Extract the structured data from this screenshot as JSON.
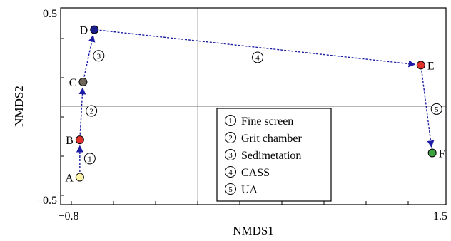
{
  "chart_data": {
    "type": "scatter",
    "title": "",
    "xlabel": "NMDS1",
    "ylabel": "NMDS2",
    "xlim": [
      -0.8,
      1.5
    ],
    "ylim": [
      -0.5,
      0.5
    ],
    "x_ticks": [
      {
        "value": -0.8,
        "label": "−0.8"
      },
      {
        "value": 1.5,
        "label": "1.5"
      }
    ],
    "y_ticks": [
      {
        "value": 0.5,
        "label": "0.5"
      },
      {
        "value": -0.5,
        "label": "−0.5"
      }
    ],
    "grid": false,
    "reference_lines": {
      "x": 0,
      "y": 0
    },
    "points": [
      {
        "label": "A",
        "x": -0.73,
        "y": -0.38,
        "color": "#fbf3a8"
      },
      {
        "label": "B",
        "x": -0.73,
        "y": -0.18,
        "color": "#e0312b"
      },
      {
        "label": "C",
        "x": -0.71,
        "y": 0.13,
        "color": "#6e6658"
      },
      {
        "label": "D",
        "x": -0.64,
        "y": 0.41,
        "color": "#1a1d8c"
      },
      {
        "label": "E",
        "x": 1.38,
        "y": 0.22,
        "color": "#e0312b"
      },
      {
        "label": "F",
        "x": 1.45,
        "y": -0.25,
        "color": "#3aa040"
      }
    ],
    "arrows": [
      {
        "from": "A",
        "to": "B",
        "step": "1"
      },
      {
        "from": "B",
        "to": "C",
        "step": "2"
      },
      {
        "from": "C",
        "to": "D",
        "step": "3"
      },
      {
        "from": "D",
        "to": "E",
        "step": "4"
      },
      {
        "from": "E",
        "to": "F",
        "step": "5"
      }
    ],
    "arrow_color": "#1c1ca6",
    "legend": {
      "placement": "bottom-center",
      "entries": [
        {
          "num": "1",
          "text": "Fine screen"
        },
        {
          "num": "2",
          "text": "Grit chamber"
        },
        {
          "num": "3",
          "text": "Sedimetation"
        },
        {
          "num": "4",
          "text": "CASS"
        },
        {
          "num": "5",
          "text": "UA"
        }
      ]
    }
  }
}
